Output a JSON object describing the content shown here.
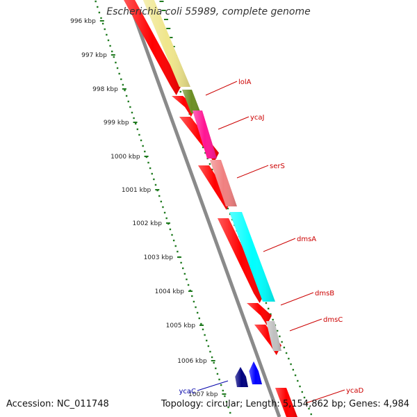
{
  "title": "Escherichia coli 55989, complete genome",
  "accession": "Accession: NC_011748",
  "summary": "Topology: circular; Length: 5,154,862 bp; Genes: 4,984",
  "colors": {
    "backbone": "#8a8a8a",
    "ticks": "#1f7a1f",
    "label_red": "#cc0000",
    "label_blue": "#0000aa"
  },
  "ruler": [
    {
      "label": "996 kbp"
    },
    {
      "label": "997 kbp"
    },
    {
      "label": "998 kbp"
    },
    {
      "label": "999 kbp"
    },
    {
      "label": "1000 kbp"
    },
    {
      "label": "1001 kbp"
    },
    {
      "label": "1002 kbp"
    },
    {
      "label": "1003 kbp"
    },
    {
      "label": "1004 kbp"
    },
    {
      "label": "1005 kbp"
    },
    {
      "label": "1006 kbp"
    },
    {
      "label": "1007 kbp"
    }
  ],
  "gene_labels": [
    {
      "name": "lolA",
      "color": "#cc0000"
    },
    {
      "name": "ycaJ",
      "color": "#cc0000"
    },
    {
      "name": "serS",
      "color": "#cc0000"
    },
    {
      "name": "dmsA",
      "color": "#cc0000"
    },
    {
      "name": "dmsB",
      "color": "#cc0000"
    },
    {
      "name": "dmsC",
      "color": "#cc0000"
    },
    {
      "name": "ycaC",
      "color": "#0000aa"
    },
    {
      "name": "ycaD",
      "color": "#cc0000"
    }
  ]
}
